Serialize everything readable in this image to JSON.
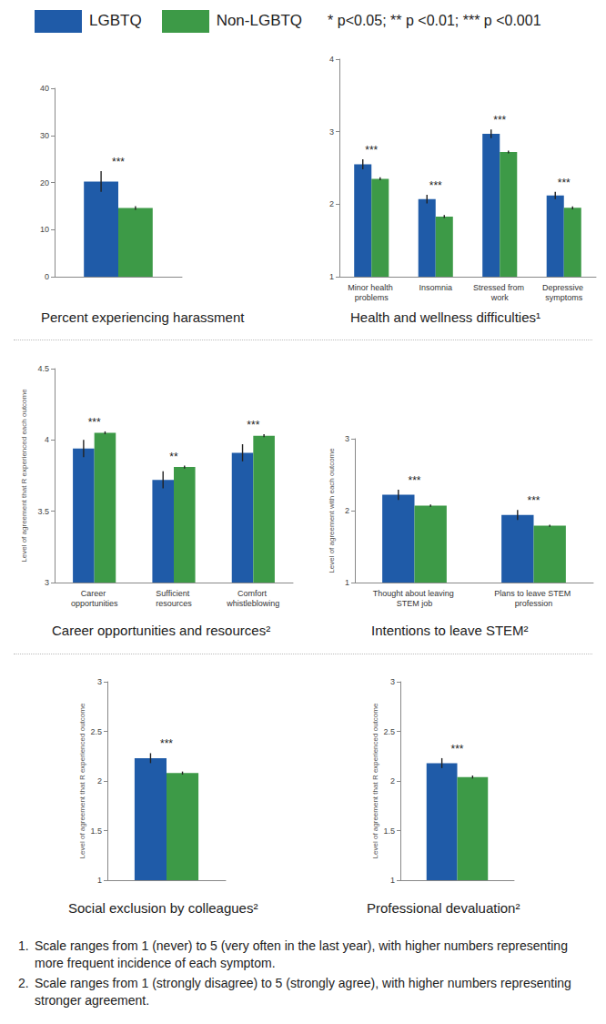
{
  "note": "* p<0.05; ** p <0.01; *** p <0.001",
  "footnotes": [
    {
      "marker": "1.",
      "text": "Scale ranges from 1 (never) to 5 (very often in the last year), with higher numbers representing more frequent incidence of each symptom."
    },
    {
      "marker": "2.",
      "text": "Scale ranges from 1 (strongly disagree) to 5 (strongly agree), with higher numbers representing stronger agreement."
    }
  ],
  "chart_data": [
    {
      "type": "bar",
      "title": "Percent experiencing harassment",
      "legend": "top left",
      "categories": [
        null
      ],
      "series": [
        {
          "name": "LGBTQ",
          "color": "#1f5ba8",
          "values": [
            20.2
          ],
          "errors": [
            2.2
          ]
        },
        {
          "name": "Non-LGBTQ",
          "color": "#3d9a47",
          "values": [
            14.6
          ],
          "errors": [
            0.4
          ]
        }
      ],
      "annotations": [
        "***"
      ],
      "ylim": [
        0,
        40
      ],
      "yticks": [
        0,
        10,
        20,
        30,
        40
      ],
      "grid": false
    },
    {
      "type": "bar",
      "title": "Health and wellness difficulties¹",
      "categories": [
        "Minor health problems",
        "Insomnia",
        "Stressed from work",
        "Depressive symptoms"
      ],
      "series": [
        {
          "name": "LGBTQ",
          "color": "#1f5ba8",
          "values": [
            2.55,
            2.07,
            2.97,
            2.12
          ],
          "errors": [
            0.07,
            0.06,
            0.06,
            0.05
          ]
        },
        {
          "name": "Non-LGBTQ",
          "color": "#3d9a47",
          "values": [
            2.35,
            1.83,
            2.72,
            1.95
          ],
          "errors": [
            0.02,
            0.02,
            0.02,
            0.02
          ]
        }
      ],
      "annotations": [
        "***",
        "***",
        "***",
        "***"
      ],
      "ylim": [
        1,
        4
      ],
      "yticks": [
        1,
        2,
        3,
        4
      ],
      "grid": false
    },
    {
      "type": "bar",
      "title": "Career opportunities and resources²",
      "ylabel": "Level of agreement that R experienced each outcome",
      "categories": [
        "Career opportunities",
        "Sufficient resources",
        "Comfort whistleblowing"
      ],
      "series": [
        {
          "name": "LGBTQ",
          "color": "#1f5ba8",
          "values": [
            3.94,
            3.72,
            3.91
          ],
          "errors": [
            0.06,
            0.06,
            0.06
          ]
        },
        {
          "name": "Non-LGBTQ",
          "color": "#3d9a47",
          "values": [
            4.05,
            3.81,
            4.03
          ],
          "errors": [
            0.01,
            0.01,
            0.01
          ]
        }
      ],
      "annotations": [
        "***",
        "**",
        "***"
      ],
      "ylim": [
        3,
        4.5
      ],
      "yticks": [
        3,
        3.5,
        4,
        4.5
      ],
      "grid": false
    },
    {
      "type": "bar",
      "title": "Intentions to leave STEM²",
      "ylabel": "Level of agreement with each outcome",
      "categories": [
        "Thought about leaving STEM job",
        "Plans to leave STEM profession"
      ],
      "series": [
        {
          "name": "LGBTQ",
          "color": "#1f5ba8",
          "values": [
            2.22,
            1.94
          ],
          "errors": [
            0.07,
            0.07
          ]
        },
        {
          "name": "Non-LGBTQ",
          "color": "#3d9a47",
          "values": [
            2.07,
            1.79
          ],
          "errors": [
            0.015,
            0.015
          ]
        }
      ],
      "annotations": [
        "***",
        "***"
      ],
      "ylim": [
        1,
        3
      ],
      "yticks": [
        1,
        2,
        3
      ],
      "grid": false
    },
    {
      "type": "bar",
      "title": "Social exclusion by colleagues²",
      "ylabel": "Level of agreement that R experienced outcome",
      "categories": [
        null
      ],
      "series": [
        {
          "name": "LGBTQ",
          "color": "#1f5ba8",
          "values": [
            2.23
          ],
          "errors": [
            0.05
          ]
        },
        {
          "name": "Non-LGBTQ",
          "color": "#3d9a47",
          "values": [
            2.08
          ],
          "errors": [
            0.015
          ]
        }
      ],
      "annotations": [
        "***"
      ],
      "ylim": [
        1,
        3
      ],
      "yticks": [
        1,
        1.5,
        2,
        2.5,
        3
      ],
      "grid": false
    },
    {
      "type": "bar",
      "title": "Professional devaluation²",
      "ylabel": "Level of agreement that R experienced outcome",
      "categories": [
        null
      ],
      "series": [
        {
          "name": "LGBTQ",
          "color": "#1f5ba8",
          "values": [
            2.18
          ],
          "errors": [
            0.05
          ]
        },
        {
          "name": "Non-LGBTQ",
          "color": "#3d9a47",
          "values": [
            2.04
          ],
          "errors": [
            0.015
          ]
        }
      ],
      "annotations": [
        "***"
      ],
      "ylim": [
        1,
        3
      ],
      "yticks": [
        1,
        1.5,
        2,
        2.5,
        3
      ],
      "grid": false
    }
  ]
}
